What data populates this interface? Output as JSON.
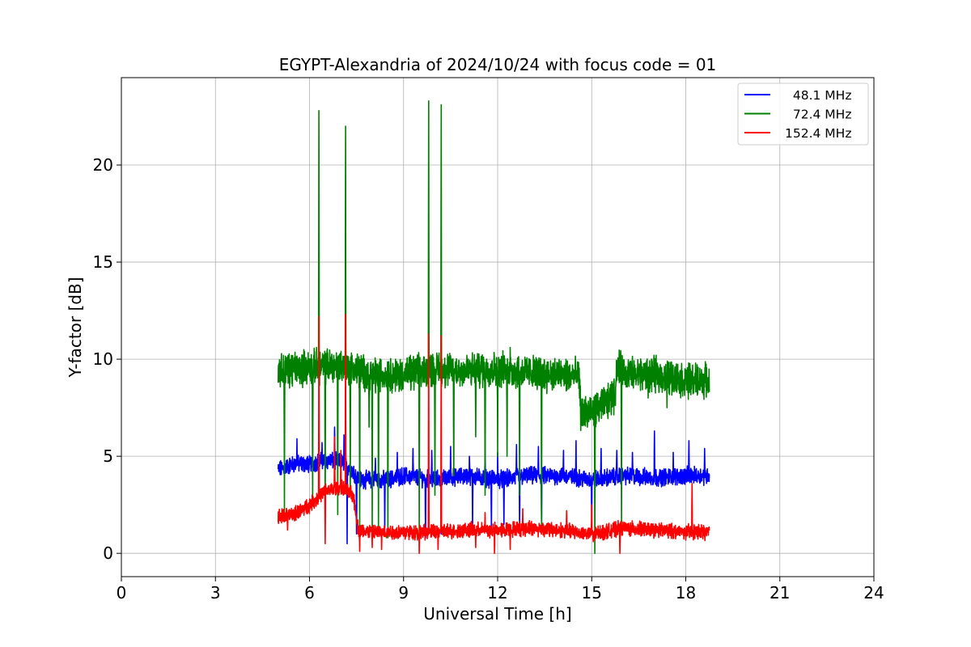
{
  "chart_data": {
    "type": "line",
    "title": "EGYPT-Alexandria of 2024/10/24 with focus code = 01",
    "xlabel": "Universal Time [h]",
    "ylabel": "Y-factor [dB]",
    "xlim": [
      0,
      24
    ],
    "ylim": [
      -1.2,
      24.5
    ],
    "xticks": [
      0,
      3,
      6,
      9,
      12,
      15,
      18,
      21,
      24
    ],
    "xtick_labels": [
      "0",
      "3",
      "6",
      "9",
      "12",
      "15",
      "18",
      "21",
      "24"
    ],
    "yticks": [
      0,
      5,
      10,
      15,
      20
    ],
    "ytick_labels": [
      "0",
      "5",
      "10",
      "15",
      "20"
    ],
    "grid": true,
    "legend_position": "top-right",
    "series": [
      {
        "name": "48.1 MHz",
        "legend_label": "  48.1 MHz",
        "color": "#0000ff",
        "x_range": [
          5.0,
          18.75
        ],
        "baseline": [
          [
            5.0,
            4.3
          ],
          [
            5.5,
            4.6
          ],
          [
            6.0,
            4.6
          ],
          [
            6.5,
            4.8
          ],
          [
            7.0,
            4.7
          ],
          [
            7.3,
            4.4
          ],
          [
            7.6,
            3.8
          ],
          [
            8.5,
            3.8
          ],
          [
            9.0,
            4.0
          ],
          [
            10.0,
            3.8
          ],
          [
            11.0,
            4.0
          ],
          [
            12.0,
            3.8
          ],
          [
            13.0,
            4.0
          ],
          [
            14.0,
            4.0
          ],
          [
            15.0,
            3.8
          ],
          [
            16.0,
            4.0
          ],
          [
            17.0,
            3.9
          ],
          [
            18.0,
            4.0
          ],
          [
            18.75,
            4.0
          ]
        ],
        "noise": 0.35,
        "peaks": [
          [
            5.6,
            5.9
          ],
          [
            6.4,
            5.7
          ],
          [
            6.8,
            6.5
          ],
          [
            7.1,
            6.1
          ],
          [
            8.1,
            4.9
          ],
          [
            8.8,
            5.2
          ],
          [
            9.3,
            5.4
          ],
          [
            9.9,
            5.3
          ],
          [
            10.2,
            5.8
          ],
          [
            10.5,
            5.5
          ],
          [
            11.1,
            5.0
          ],
          [
            11.6,
            5.4
          ],
          [
            12.0,
            5.2
          ],
          [
            12.6,
            5.6
          ],
          [
            13.3,
            5.5
          ],
          [
            14.1,
            5.3
          ],
          [
            14.5,
            5.8
          ],
          [
            15.3,
            5.4
          ],
          [
            15.8,
            5.3
          ],
          [
            16.3,
            5.2
          ],
          [
            17.0,
            6.3
          ],
          [
            17.6,
            5.2
          ],
          [
            18.1,
            5.8
          ],
          [
            18.6,
            5.4
          ]
        ],
        "dips": [
          [
            7.2,
            0.5
          ],
          [
            7.5,
            1.0
          ],
          [
            8.4,
            1.0
          ],
          [
            9.7,
            0.8
          ],
          [
            10.2,
            1.0
          ],
          [
            11.2,
            1.2
          ],
          [
            11.8,
            1.3
          ],
          [
            12.2,
            1.5
          ],
          [
            12.7,
            1.3
          ],
          [
            13.4,
            1.4
          ],
          [
            15.0,
            1.2
          ]
        ]
      },
      {
        "name": "72.4 MHz",
        "legend_label": "  72.4 MHz",
        "color": "#008000",
        "x_range": [
          5.0,
          18.75
        ],
        "baseline": [
          [
            5.0,
            9.4
          ],
          [
            6.0,
            9.6
          ],
          [
            7.0,
            9.7
          ],
          [
            8.0,
            9.2
          ],
          [
            9.0,
            9.2
          ],
          [
            10.0,
            9.5
          ],
          [
            11.0,
            9.4
          ],
          [
            12.0,
            9.5
          ],
          [
            13.0,
            9.3
          ],
          [
            14.0,
            9.2
          ],
          [
            14.6,
            9.1
          ],
          [
            14.65,
            7.3
          ],
          [
            15.0,
            7.2
          ],
          [
            15.5,
            7.8
          ],
          [
            15.75,
            8.2
          ],
          [
            15.8,
            9.6
          ],
          [
            16.3,
            9.2
          ],
          [
            17.0,
            9.2
          ],
          [
            18.0,
            8.9
          ],
          [
            18.75,
            8.9
          ]
        ],
        "noise": 0.7,
        "peaks": [
          [
            6.3,
            22.8
          ],
          [
            7.15,
            22.0
          ],
          [
            9.8,
            23.3
          ],
          [
            10.2,
            23.1
          ],
          [
            7.6,
            7.0
          ],
          [
            7.9,
            6.5
          ],
          [
            12.4,
            10.6
          ]
        ],
        "dips": [
          [
            5.2,
            2.0
          ],
          [
            6.1,
            2.5
          ],
          [
            6.5,
            1.5
          ],
          [
            6.9,
            2.0
          ],
          [
            7.3,
            3.0
          ],
          [
            7.6,
            1.0
          ],
          [
            8.0,
            0.8
          ],
          [
            8.2,
            1.0
          ],
          [
            8.5,
            0.8
          ],
          [
            9.5,
            1.0
          ],
          [
            10.0,
            3.0
          ],
          [
            10.6,
            4.0
          ],
          [
            11.3,
            6.0
          ],
          [
            11.6,
            3.0
          ],
          [
            12.0,
            5.0
          ],
          [
            12.3,
            5.0
          ],
          [
            12.7,
            3.0
          ],
          [
            13.4,
            1.5
          ],
          [
            15.1,
            0.0
          ],
          [
            15.95,
            1.5
          ],
          [
            16.8,
            8.0
          ],
          [
            17.4,
            7.5
          ]
        ]
      },
      {
        "name": "152.4 MHz",
        "legend_label": "152.4 MHz",
        "color": "#ff0000",
        "x_range": [
          5.0,
          18.75
        ],
        "baseline": [
          [
            5.0,
            1.9
          ],
          [
            5.5,
            2.0
          ],
          [
            6.0,
            2.5
          ],
          [
            6.5,
            3.2
          ],
          [
            7.0,
            3.4
          ],
          [
            7.4,
            3.0
          ],
          [
            7.55,
            1.2
          ],
          [
            8.0,
            1.1
          ],
          [
            9.0,
            1.1
          ],
          [
            10.0,
            1.1
          ],
          [
            11.0,
            1.2
          ],
          [
            12.0,
            1.2
          ],
          [
            13.0,
            1.3
          ],
          [
            14.0,
            1.2
          ],
          [
            15.0,
            1.0
          ],
          [
            16.0,
            1.3
          ],
          [
            17.0,
            1.2
          ],
          [
            18.0,
            1.1
          ],
          [
            18.75,
            1.1
          ]
        ],
        "noise": 0.3,
        "peaks": [
          [
            6.3,
            12.2
          ],
          [
            7.15,
            12.3
          ],
          [
            9.8,
            11.3
          ],
          [
            10.2,
            11.2
          ],
          [
            6.8,
            6.0
          ],
          [
            7.0,
            5.3
          ],
          [
            18.2,
            3.6
          ],
          [
            15.0,
            2.5
          ],
          [
            11.6,
            2.1
          ],
          [
            12.8,
            2.3
          ],
          [
            14.2,
            2.2
          ]
        ],
        "dips": [
          [
            5.3,
            1.2
          ],
          [
            6.5,
            0.5
          ],
          [
            7.6,
            0.1
          ],
          [
            8.0,
            0.3
          ],
          [
            8.3,
            0.2
          ],
          [
            9.5,
            0.0
          ],
          [
            10.1,
            0.2
          ],
          [
            11.3,
            0.3
          ],
          [
            11.9,
            0.0
          ],
          [
            12.4,
            0.2
          ],
          [
            15.05,
            0.6
          ],
          [
            15.9,
            0.0
          ]
        ]
      }
    ]
  }
}
